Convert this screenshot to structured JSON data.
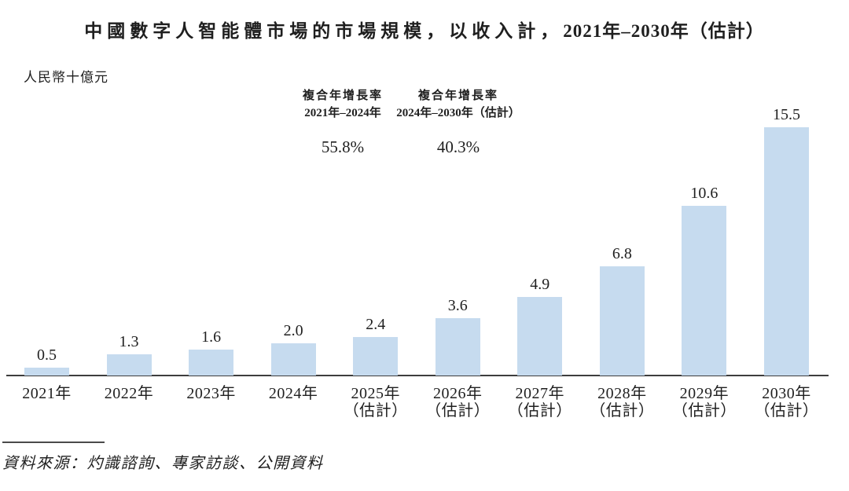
{
  "title": {
    "text_main": "中國數字人智能體市場的市場規模，以收入計，",
    "text_range": "2021年–2030年（估計）"
  },
  "unit_label": "人民幣十億元",
  "cagr": [
    {
      "label_line1": "複合年增長率",
      "label_line2": "2021年–2024年",
      "value": "55.8%"
    },
    {
      "label_line1": "複合年增長率",
      "label_line2": "2024年–2030年（估計）",
      "value": "40.3%"
    }
  ],
  "source": "資料來源：灼識諮詢、專家訪談、公開資料",
  "chart_data": {
    "type": "bar",
    "title": "中國數字人智能體市場的市場規模，以收入計，2021年–2030年（估計）",
    "xlabel": "",
    "ylabel": "人民幣十億元",
    "categories": [
      "2021年",
      "2022年",
      "2023年",
      "2024年",
      "2025年（估計）",
      "2026年（估計）",
      "2027年（估計）",
      "2028年（估計）",
      "2029年（估計）",
      "2030年（估計）"
    ],
    "category_lines": [
      [
        "2021年"
      ],
      [
        "2022年"
      ],
      [
        "2023年"
      ],
      [
        "2024年"
      ],
      [
        "2025年",
        "（估計）"
      ],
      [
        "2026年",
        "（估計）"
      ],
      [
        "2027年",
        "（估計）"
      ],
      [
        "2028年",
        "（估計）"
      ],
      [
        "2029年",
        "（估計）"
      ],
      [
        "2030年",
        "（估計）"
      ]
    ],
    "values": [
      0.5,
      1.3,
      1.6,
      2.0,
      2.4,
      3.6,
      4.9,
      6.8,
      10.6,
      15.5
    ],
    "ylim": [
      0,
      16
    ],
    "grid": false,
    "legend": "none",
    "bar_color": "#c6dbef",
    "axis_color": "#3d3d3d",
    "annotations": [
      {
        "label": "複合年增長率 2021年–2024年",
        "value": "55.8%"
      },
      {
        "label": "複合年增長率 2024年–2030年（估計）",
        "value": "40.3%"
      }
    ]
  }
}
